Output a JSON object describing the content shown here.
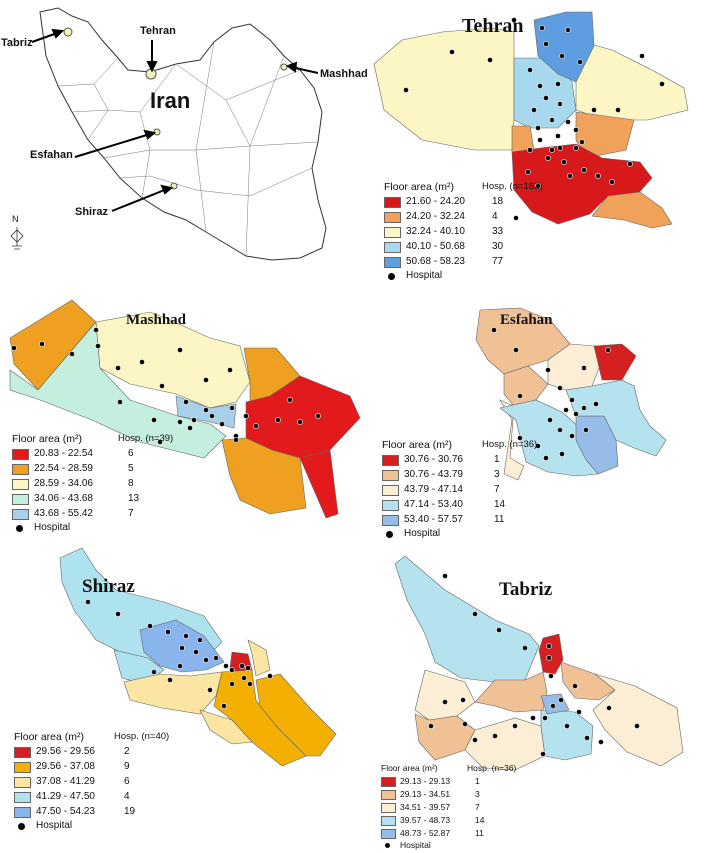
{
  "iran": {
    "country_label": "Iran",
    "north_label": "N",
    "cities": [
      "Tabriz",
      "Tehran",
      "Mashhad",
      "Esfahan",
      "Shiraz"
    ]
  },
  "legend_common": {
    "hospital_label": "Hospital"
  },
  "maps": {
    "tehran": {
      "title": "Tehran",
      "legend_title": "Floor area (m²)",
      "hosp_header": "Hosp. (n=162)",
      "classes": [
        {
          "range": "21.60 - 24.20",
          "count": "18",
          "color": "#d7191c"
        },
        {
          "range": "24.20 - 32.24",
          "count": "4",
          "color": "#f0a25a"
        },
        {
          "range": "32.24 - 40.10",
          "count": "33",
          "color": "#fbf6c4"
        },
        {
          "range": "40.10 - 50.68",
          "count": "30",
          "color": "#a8d8ee"
        },
        {
          "range": "50.68 - 58.23",
          "count": "77",
          "color": "#5e9ee0"
        }
      ]
    },
    "mashhad": {
      "title": "Mashhad",
      "legend_title": "Floor area (m²)",
      "hosp_header": "Hosp. (n=39)",
      "classes": [
        {
          "range": "20.83 - 22.54",
          "count": "6",
          "color": "#e31a1c"
        },
        {
          "range": "22.54 - 28.59",
          "count": "5",
          "color": "#f0a020"
        },
        {
          "range": "28.59 - 34.06",
          "count": "8",
          "color": "#fbf6c4"
        },
        {
          "range": "34.06 - 43.68",
          "count": "13",
          "color": "#c4eedd"
        },
        {
          "range": "43.68 - 55.42",
          "count": "7",
          "color": "#a8d0ea"
        }
      ]
    },
    "esfahan": {
      "title": "Esfahan",
      "legend_title": "Floor area (m²)",
      "hosp_header": "Hosp. (n=36)",
      "classes": [
        {
          "range": "30.76 - 30.76",
          "count": "1",
          "color": "#d42020"
        },
        {
          "range": "30.76 - 43.79",
          "count": "3",
          "color": "#efc195"
        },
        {
          "range": "43.79 - 47.14",
          "count": "7",
          "color": "#fbeed4"
        },
        {
          "range": "47.14 - 53.40",
          "count": "14",
          "color": "#b4e2ee"
        },
        {
          "range": "53.40 - 57.57",
          "count": "11",
          "color": "#95bde8"
        }
      ]
    },
    "shiraz": {
      "title": "Shiraz",
      "legend_title": "Floor area (m²)",
      "hosp_header": "Hosp. (n=40)",
      "classes": [
        {
          "range": "29.56 - 29.56",
          "count": "2",
          "color": "#d42020"
        },
        {
          "range": "29.56 - 37.08",
          "count": "9",
          "color": "#f4b000"
        },
        {
          "range": "37.08 - 41.29",
          "count": "6",
          "color": "#fbe5a2"
        },
        {
          "range": "41.29 - 47.50",
          "count": "4",
          "color": "#aee2ee"
        },
        {
          "range": "47.50 - 54.23",
          "count": "19",
          "color": "#8ab4ec"
        }
      ]
    },
    "tabriz": {
      "title": "Tabriz",
      "legend_title": "Floor area (m²)",
      "hosp_header": "Hosp. (n=36)",
      "classes": [
        {
          "range": "29.13 - 29.13",
          "count": "1",
          "color": "#d42020"
        },
        {
          "range": "29.13 - 34.51",
          "count": "3",
          "color": "#efc195"
        },
        {
          "range": "34.51 - 39.57",
          "count": "7",
          "color": "#fbeed4"
        },
        {
          "range": "39.57 - 48.73",
          "count": "14",
          "color": "#b4e2ee"
        },
        {
          "range": "48.73 - 52.87",
          "count": "11",
          "color": "#95bde8"
        }
      ]
    }
  }
}
